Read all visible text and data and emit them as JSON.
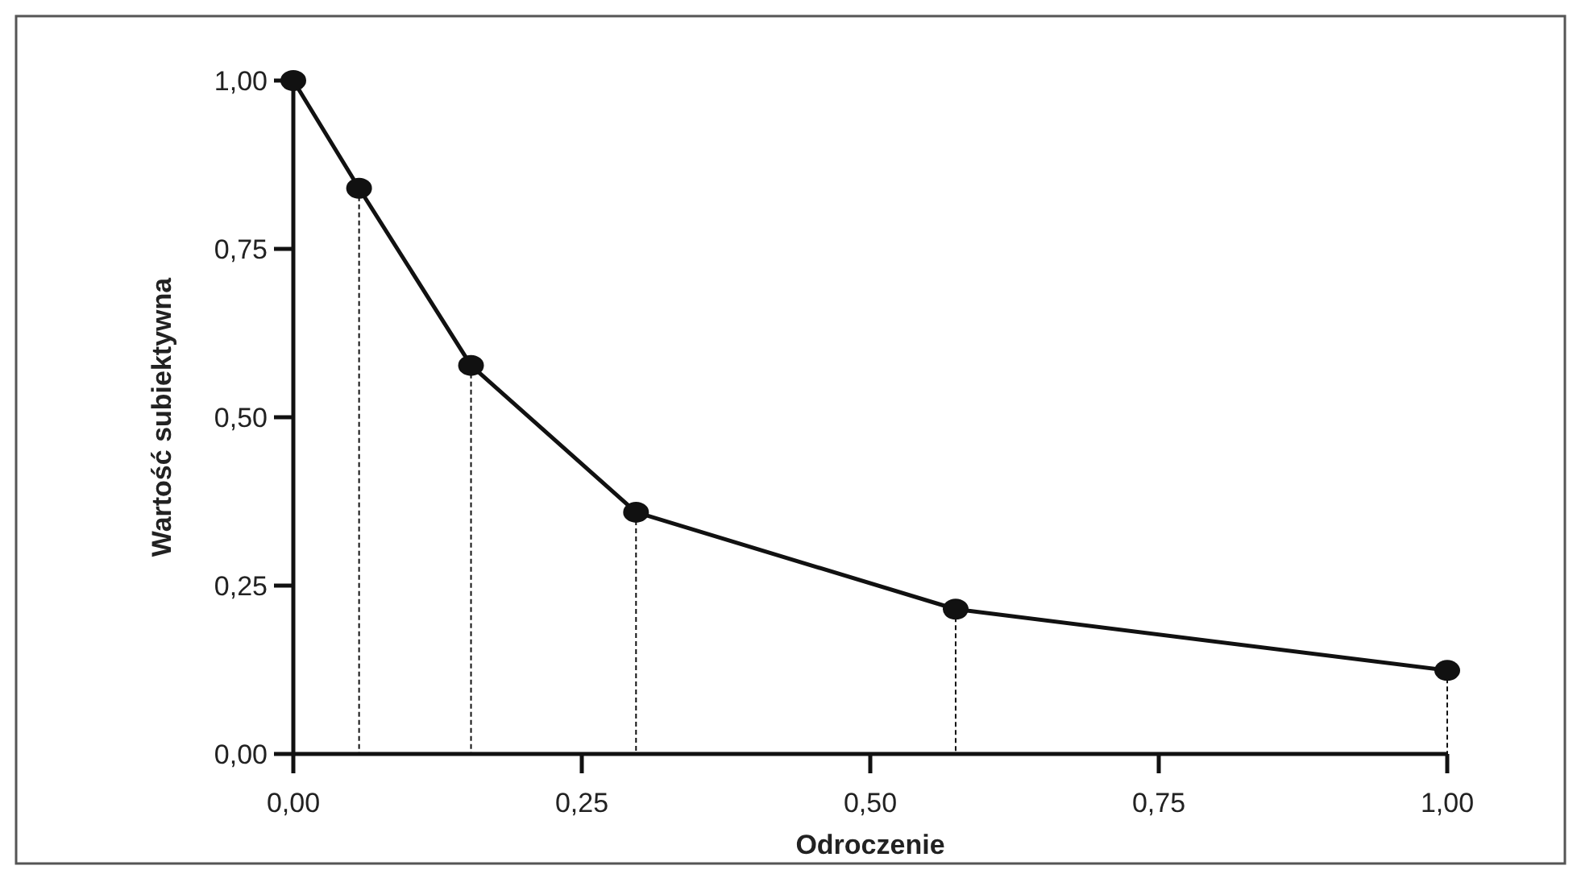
{
  "chart_data": {
    "type": "line",
    "xlabel": "Odroczenie",
    "ylabel": "Wartość subiektywna",
    "x": [
      0,
      0.057,
      0.154,
      0.297,
      0.574,
      1.0
    ],
    "series": [
      {
        "color": "#111111",
        "values": [
          1.0,
          0.84,
          0.577,
          0.359,
          0.215,
          0.124
        ]
      },
      {
        "type": "lollipop",
        "color": "#111111",
        "marker": "circle",
        "line_style": "dashed",
        "values": [
          1.0,
          0.84,
          0.577,
          0.359,
          0.215,
          0.124
        ]
      }
    ],
    "xlim": [
      0,
      1.0
    ],
    "xticks": [
      {
        "value": 0,
        "label": "0,00"
      },
      {
        "value": 0.25,
        "label": "0,25"
      },
      {
        "value": 0.5,
        "label": "0,50"
      },
      {
        "value": 0.75,
        "label": "0,75"
      },
      {
        "value": 1,
        "label": "1,00"
      }
    ],
    "ylim": [
      0,
      1.0
    ],
    "yticks": [
      {
        "value": 0,
        "label": "0,00"
      },
      {
        "value": 0.25,
        "label": "0,25"
      },
      {
        "value": 0.5,
        "label": "0,50"
      },
      {
        "value": 0.75,
        "label": "0,75"
      },
      {
        "value": 1,
        "label": "1,00"
      }
    ],
    "line_style": "solid"
  }
}
